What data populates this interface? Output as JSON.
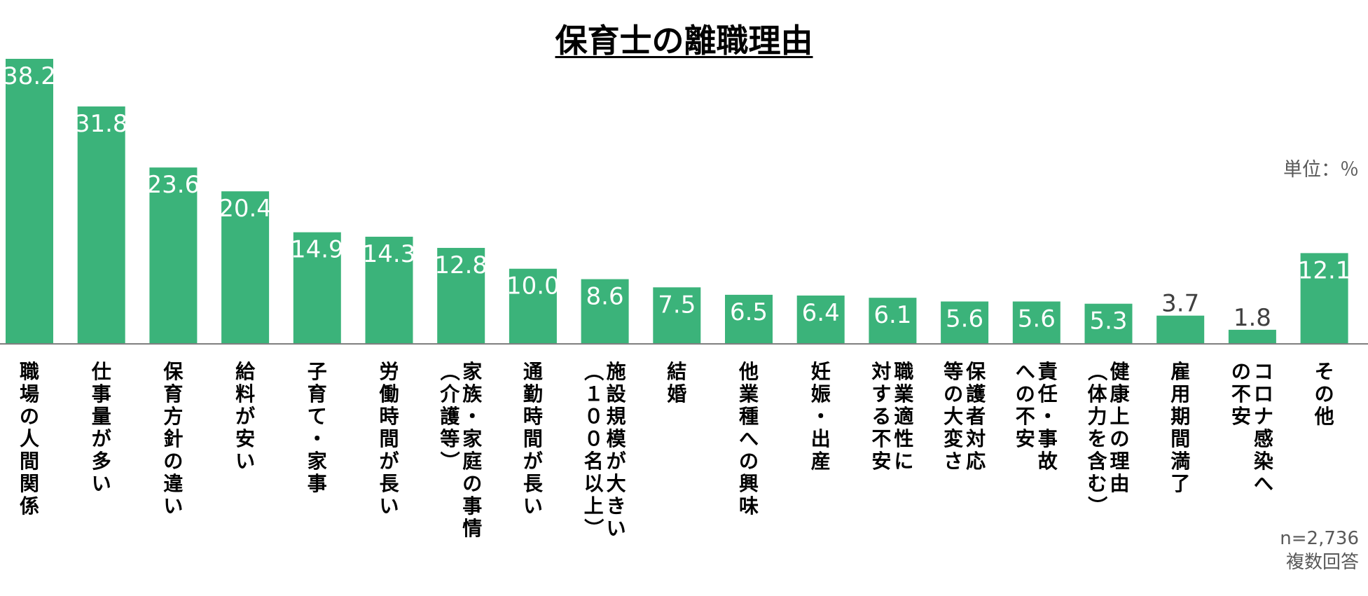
{
  "colors": {
    "bar": "#3BB37A",
    "axis": "#7F7F7F"
  },
  "chart_data": {
    "type": "bar",
    "title": "保育士の離職理由",
    "unit": "単位：％",
    "sample_size": "n=2,736",
    "answer_type": "複数回答",
    "ylim": [
      0,
      40
    ],
    "grid": false,
    "categories": [
      "職場の人間関係",
      "仕事量が多い",
      "保育方針の違い",
      "給料が安い",
      "子育て・家事",
      "労働時間が長い",
      "家族・家庭の事情（介護等）",
      "通勤時間が長い",
      "施設規模が大きい（１００名以上）",
      "結婚",
      "他業種への興味",
      "妊娠・出産",
      "職業適性に対する不安",
      "保護者対応等の大変さ",
      "責任・事故への不安",
      "健康上の理由（体力を含む）",
      "雇用期間満了",
      "コロナ感染への不安",
      "その他"
    ],
    "label_lines": [
      [
        "職場の人間関係"
      ],
      [
        "仕事量が多い"
      ],
      [
        "保育方針の違い"
      ],
      [
        "給料が安い"
      ],
      [
        "子育て・家事"
      ],
      [
        "労働時間が長い"
      ],
      [
        "家族・家庭の事情",
        "（介護等）"
      ],
      [
        "通勤時間が長い"
      ],
      [
        "施設規模が大きい",
        "（１００名以上）"
      ],
      [
        "結婚"
      ],
      [
        "他業種への興味"
      ],
      [
        "妊娠・出産"
      ],
      [
        "職業適性に",
        "対する不安"
      ],
      [
        "保護者対応",
        "等の大変さ"
      ],
      [
        "責任・事故",
        "への不安"
      ],
      [
        "健康上の理由",
        "（体力を含む）"
      ],
      [
        "雇用期間満了"
      ],
      [
        "コロナ感染へ",
        "の不安"
      ],
      [
        "その他"
      ]
    ],
    "values": [
      38.2,
      31.8,
      23.6,
      20.4,
      14.9,
      14.3,
      12.8,
      10.0,
      8.6,
      7.5,
      6.5,
      6.4,
      6.1,
      5.6,
      5.6,
      5.3,
      3.7,
      1.8,
      12.1
    ],
    "value_labels": [
      "38.2",
      "31.8",
      "23.6",
      "20.4",
      "14.9",
      "14.3",
      "12.8",
      "10.0",
      "8.6",
      "7.5",
      "6.5",
      "6.4",
      "6.1",
      "5.6",
      "5.6",
      "5.3",
      "3.7",
      "1.8",
      "12.1"
    ]
  }
}
